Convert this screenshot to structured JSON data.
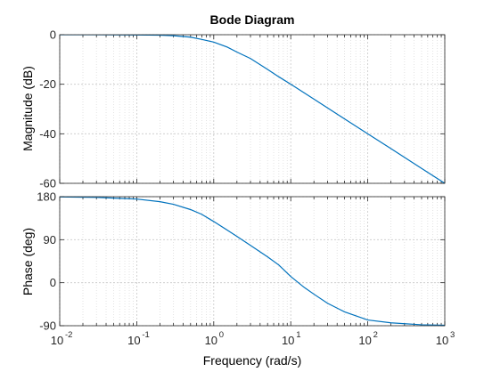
{
  "chart_data": [
    {
      "type": "line",
      "title": "Bode Diagram",
      "ylabel": "Magnitude (dB)",
      "xscale": "log",
      "xlim": [
        0.01,
        1000
      ],
      "ylim": [
        -60,
        0
      ],
      "yticks": [
        "0",
        "-20",
        "-40",
        "-60"
      ],
      "grid": true,
      "color": "#0072BD",
      "series": [
        {
          "x": [
            0.01,
            0.03,
            0.1,
            0.2,
            0.3,
            0.5,
            0.7,
            1,
            1.5,
            2,
            3,
            5,
            7,
            10,
            20,
            50,
            100,
            200,
            500,
            1000
          ],
          "y": [
            0,
            0,
            -0.1,
            -0.2,
            -0.4,
            -1,
            -1.9,
            -3,
            -5,
            -7,
            -9.6,
            -14,
            -17,
            -20,
            -26,
            -34,
            -40,
            -46,
            -54,
            -60
          ]
        }
      ]
    },
    {
      "type": "line",
      "xlabel": "Frequency  (rad/s)",
      "ylabel": "Phase (deg)",
      "xscale": "log",
      "xlim": [
        0.01,
        1000
      ],
      "ylim": [
        -90,
        180
      ],
      "yticks": [
        "180",
        "90",
        "0",
        "-90"
      ],
      "xtick_bases": [
        "10",
        "10",
        "10",
        "10",
        "10",
        "10"
      ],
      "xtick_exponents": [
        "-2",
        "-1",
        "0",
        "1",
        "2",
        "3"
      ],
      "grid": true,
      "color": "#0072BD",
      "series": [
        {
          "x": [
            0.01,
            0.03,
            0.1,
            0.2,
            0.3,
            0.5,
            0.7,
            1,
            1.5,
            2,
            3,
            5,
            7,
            10,
            15,
            20,
            30,
            50,
            100,
            200,
            500,
            1000
          ],
          "y": [
            179.5,
            178.5,
            175,
            169.5,
            164,
            153,
            143,
            128,
            110,
            97,
            78,
            54,
            37,
            13,
            -10,
            -24,
            -43,
            -61,
            -78,
            -84,
            -88,
            -89
          ]
        }
      ]
    }
  ]
}
